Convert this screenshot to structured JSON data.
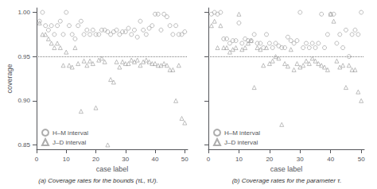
{
  "chart_data": [
    {
      "type": "scatter",
      "title": "(a) Coverage rates for the bounds (τL, τU).",
      "xlabel": "case label",
      "ylabel": "coverage",
      "color": "#999999",
      "grid": false,
      "legend": "lower left",
      "xlim": [
        0,
        51
      ],
      "xticks": [
        0,
        10,
        20,
        30,
        40,
        50
      ],
      "ylim": [
        0.845,
        1.005
      ],
      "yticks": [
        0.85,
        {
          "value": 0.9,
          "label": "0.90"
        },
        0.95,
        {
          "value": 1.0,
          "label": "1.00"
        }
      ],
      "hline": 0.95,
      "series": [
        {
          "name": "H–M interval",
          "marker": "circle",
          "x": [
            1,
            2,
            3,
            4,
            5,
            6,
            7,
            8,
            9,
            10,
            11,
            12,
            13,
            14,
            15,
            16,
            17,
            18,
            19,
            20,
            21,
            22,
            23,
            24,
            25,
            26,
            27,
            28,
            29,
            30,
            31,
            32,
            33,
            34,
            35,
            36,
            37,
            38,
            39,
            40,
            41,
            42,
            43,
            44,
            45,
            46,
            47,
            48,
            49,
            50
          ],
          "y": [
            0.99,
            1.0,
            0.985,
            0.98,
            0.985,
            0.975,
            0.985,
            0.99,
            0.975,
            1.0,
            0.985,
            0.975,
            0.97,
            0.985,
            0.99,
            0.975,
            0.98,
            0.975,
            0.98,
            0.975,
            0.975,
            0.98,
            0.98,
            0.978,
            0.975,
            0.978,
            0.98,
            0.975,
            0.978,
            0.978,
            0.982,
            0.975,
            0.98,
            0.972,
            0.99,
            0.98,
            0.975,
            0.982,
            0.985,
            0.998,
            0.998,
            0.98,
            0.998,
            0.995,
            0.985,
            0.975,
            0.985,
            0.975,
            0.975,
            0.978
          ]
        },
        {
          "name": "J–D interval",
          "marker": "triangle",
          "x": [
            1,
            2,
            3,
            4,
            5,
            6,
            7,
            8,
            9,
            10,
            11,
            12,
            13,
            14,
            15,
            16,
            17,
            18,
            19,
            20,
            21,
            22,
            23,
            24,
            25,
            26,
            27,
            28,
            29,
            30,
            31,
            32,
            33,
            34,
            35,
            36,
            37,
            38,
            39,
            40,
            41,
            42,
            43,
            44,
            45,
            46,
            47,
            48,
            49,
            50
          ],
          "y": [
            0.988,
            0.975,
            0.975,
            0.97,
            0.965,
            0.96,
            0.965,
            0.96,
            0.94,
            0.955,
            0.94,
            0.938,
            0.96,
            0.942,
            0.888,
            0.945,
            0.94,
            0.945,
            0.942,
            0.892,
            0.946,
            0.948,
            0.944,
            0.85,
            0.924,
            0.921,
            0.944,
            0.938,
            0.944,
            0.942,
            0.942,
            0.946,
            0.944,
            0.946,
            0.94,
            0.944,
            0.946,
            0.944,
            0.942,
            0.942,
            0.94,
            0.94,
            0.942,
            0.94,
            0.935,
            0.935,
            0.9,
            0.94,
            0.88,
            0.875
          ]
        }
      ]
    },
    {
      "type": "scatter",
      "title": "(b) Coverage rates for the parameter τ.",
      "xlabel": "case label",
      "color": "#999999",
      "grid": false,
      "legend": "lower left",
      "tick_labels": "x",
      "xlim": [
        0,
        51
      ],
      "xticks": [
        0,
        10,
        20,
        30,
        40,
        50
      ],
      "ylim": [
        0.845,
        1.005
      ],
      "yticks": [
        0.85,
        {
          "value": 0.9,
          "label": "0.90"
        },
        0.95,
        {
          "value": 1.0,
          "label": "1.00"
        }
      ],
      "hline": 0.95,
      "series": [
        {
          "name": "H–M interval",
          "marker": "circle",
          "x": [
            1,
            2,
            3,
            4,
            5,
            6,
            7,
            8,
            9,
            10,
            11,
            12,
            13,
            14,
            15,
            16,
            17,
            18,
            19,
            20,
            21,
            22,
            23,
            24,
            25,
            26,
            27,
            28,
            29,
            30,
            31,
            32,
            33,
            34,
            35,
            36,
            37,
            38,
            39,
            40,
            41,
            42,
            43,
            44,
            45,
            46,
            47,
            48,
            49,
            50
          ],
          "y": [
            0.998,
            1.0,
            0.998,
            1.0,
            0.97,
            0.97,
            0.965,
            0.968,
            0.968,
            0.988,
            0.965,
            0.97,
            0.968,
            0.968,
            0.975,
            0.965,
            0.965,
            0.96,
            0.975,
            0.965,
            0.96,
            0.965,
            0.962,
            0.96,
            0.96,
            0.972,
            0.968,
            0.965,
            0.968,
            1.0,
            0.96,
            0.965,
            0.96,
            0.965,
            0.96,
            0.965,
            0.998,
            0.96,
            0.975,
            0.998,
            0.998,
            0.965,
            0.975,
            0.96,
            0.98,
            0.95,
            0.975,
            0.98,
            0.975,
            1.0
          ]
        },
        {
          "name": "J–D interval",
          "marker": "triangle",
          "x": [
            1,
            2,
            3,
            4,
            5,
            6,
            7,
            8,
            9,
            10,
            11,
            12,
            13,
            14,
            15,
            16,
            17,
            18,
            19,
            20,
            21,
            22,
            23,
            24,
            25,
            26,
            27,
            28,
            29,
            30,
            31,
            32,
            33,
            34,
            35,
            36,
            37,
            38,
            39,
            40,
            41,
            42,
            43,
            44,
            45,
            46,
            47,
            48,
            49,
            50
          ],
          "y": [
            0.985,
            0.99,
            0.96,
            0.985,
            0.96,
            0.96,
            0.955,
            0.958,
            0.96,
            0.998,
            0.958,
            0.96,
            0.965,
            0.968,
            0.915,
            0.96,
            0.958,
            0.94,
            0.96,
            0.942,
            0.945,
            0.95,
            0.948,
            0.873,
            0.942,
            0.939,
            0.958,
            0.935,
            0.942,
            0.938,
            0.94,
            0.945,
            0.942,
            0.948,
            0.945,
            0.942,
            0.94,
            0.938,
            0.935,
            0.998,
            0.99,
            0.945,
            0.938,
            0.94,
            0.915,
            0.94,
            0.935,
            0.935,
            0.91,
            0.9
          ]
        }
      ]
    }
  ]
}
